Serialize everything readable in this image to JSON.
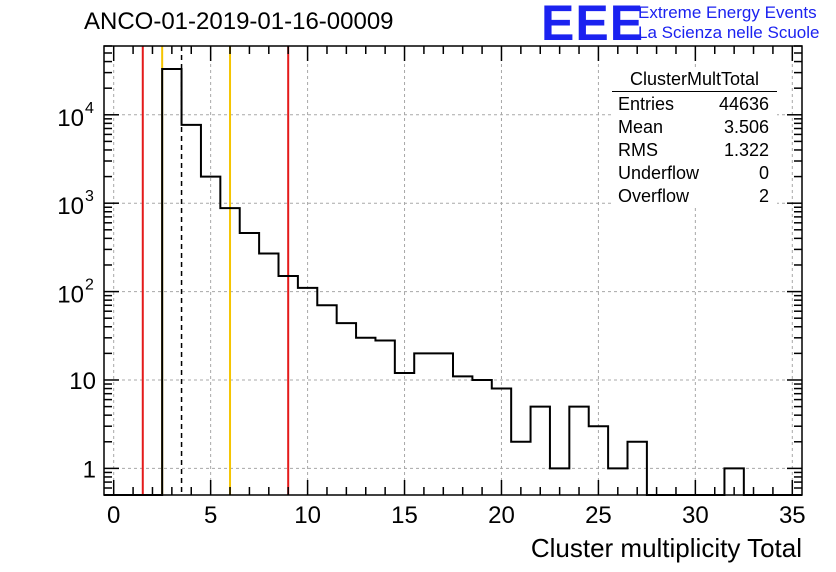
{
  "chart_data": {
    "type": "histogram",
    "title": "ANCO-01-2019-01-16-00009",
    "xlabel": "Cluster multiplicity Total",
    "ylabel": "",
    "yscale": "log",
    "xlim": [
      -0.5,
      35.5
    ],
    "ylim": [
      0.5,
      60000
    ],
    "grid": true,
    "bin_edges": [
      -0.5,
      0.5,
      1.5,
      2.5,
      3.5,
      4.5,
      5.5,
      6.5,
      7.5,
      8.5,
      9.5,
      10.5,
      11.5,
      12.5,
      13.5,
      14.5,
      15.5,
      16.5,
      17.5,
      18.5,
      19.5,
      20.5,
      21.5,
      22.5,
      23.5,
      24.5,
      25.5,
      26.5,
      27.5,
      28.5,
      29.5,
      30.5,
      31.5,
      32.5,
      33.5,
      34.5,
      35.5
    ],
    "counts": [
      0,
      0,
      0,
      33000,
      7700,
      2000,
      880,
      460,
      270,
      150,
      110,
      70,
      44,
      30,
      28,
      12,
      20,
      20,
      11,
      10,
      8,
      2,
      5,
      1,
      5,
      3,
      1,
      2,
      0,
      0,
      0,
      0,
      1,
      0,
      0,
      0
    ],
    "x_ticks": [
      {
        "value": 0,
        "label": "0"
      },
      {
        "value": 5,
        "label": "5"
      },
      {
        "value": 10,
        "label": "10"
      },
      {
        "value": 15,
        "label": "15"
      },
      {
        "value": 20,
        "label": "20"
      },
      {
        "value": 25,
        "label": "25"
      },
      {
        "value": 30,
        "label": "30"
      },
      {
        "value": 35,
        "label": "35"
      }
    ],
    "y_ticks": [
      {
        "value": 1,
        "base": "1",
        "exp": ""
      },
      {
        "value": 10,
        "base": "10",
        "exp": ""
      },
      {
        "value": 100,
        "base": "10",
        "exp": "2"
      },
      {
        "value": 1000,
        "base": "10",
        "exp": "3"
      },
      {
        "value": 10000,
        "base": "10",
        "exp": "4"
      }
    ],
    "vertical_lines": [
      {
        "x": 1.5,
        "color": "#e41a1a",
        "style": "solid"
      },
      {
        "x": 2.5,
        "color": "#f5c400",
        "style": "solid"
      },
      {
        "x": 3.5,
        "color": "#000000",
        "style": "dashed"
      },
      {
        "x": 6.0,
        "color": "#f5c400",
        "style": "solid"
      },
      {
        "x": 9.0,
        "color": "#e41a1a",
        "style": "solid"
      }
    ],
    "stats_box": {
      "title": "ClusterMultTotal",
      "rows": [
        {
          "label": "Entries",
          "value": "44636"
        },
        {
          "label": "Mean",
          "value": "3.506"
        },
        {
          "label": "RMS",
          "value": "1.322"
        },
        {
          "label": "Underflow",
          "value": "0"
        },
        {
          "label": "Overflow",
          "value": "2"
        }
      ]
    }
  },
  "logo": {
    "mark": "EEE",
    "line1": "Extreme Energy Events",
    "line2": "La Scienza nelle Scuole",
    "color": "#1b22f0"
  }
}
